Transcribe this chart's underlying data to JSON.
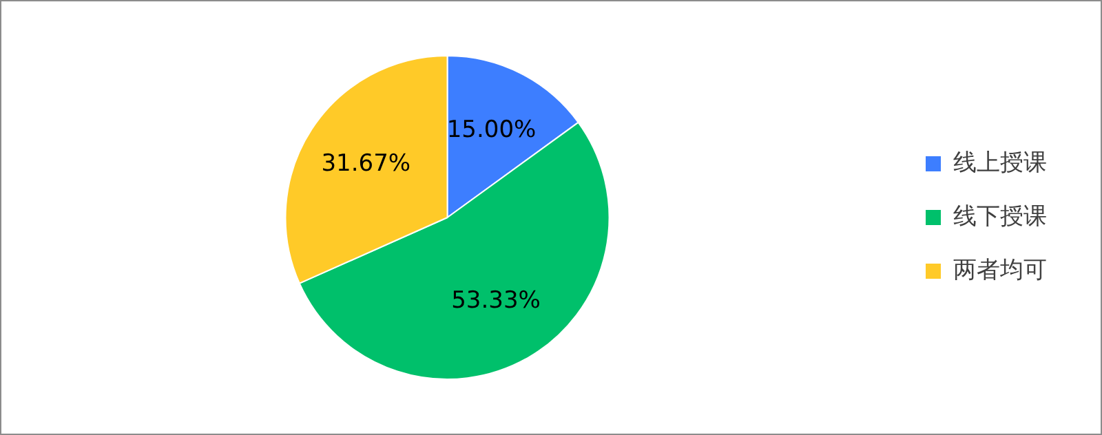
{
  "chart_data": {
    "type": "pie",
    "categories": [
      "线上授课",
      "线下授课",
      "两者均可"
    ],
    "values": [
      15.0,
      53.33,
      31.67
    ],
    "colors": [
      "#3d7eff",
      "#00c06b",
      "#ffca28"
    ],
    "value_labels": [
      "15.00%",
      "53.33%",
      "31.67%"
    ],
    "legend": "right"
  }
}
